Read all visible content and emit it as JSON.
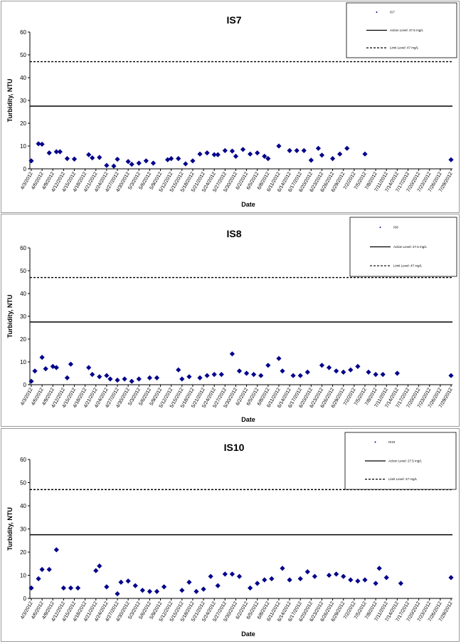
{
  "chart_data": [
    {
      "type": "scatter",
      "title": "IS7",
      "xlabel": "Date",
      "ylabel": "Turbidity, NTU",
      "ylim": [
        0,
        60
      ],
      "yticks": [
        0,
        10,
        20,
        30,
        40,
        50,
        60
      ],
      "xticklabels": [
        "4/3/2012",
        "4/6/2012",
        "4/9/2012",
        "4/12/2012",
        "4/15/2012",
        "4/18/2012",
        "4/21/2012",
        "4/24/2012",
        "4/27/2012",
        "4/30/2012",
        "5/3/2012",
        "5/6/2012",
        "5/9/2012",
        "5/12/2012",
        "5/15/2012",
        "5/18/2012",
        "5/21/2012",
        "5/24/2012",
        "5/27/2012",
        "5/30/2012",
        "6/2/2012",
        "6/5/2012",
        "6/8/2012",
        "6/11/2012",
        "6/14/2012",
        "6/17/2012",
        "6/20/2012",
        "6/23/2012",
        "6/26/2012",
        "6/29/2012",
        "7/2/2012",
        "7/5/2012",
        "7/8/2012",
        "7/11/2012",
        "7/14/2012",
        "7/17/2012",
        "7/20/2012",
        "7/23/2012",
        "7/26/2012",
        "7/29/2012"
      ],
      "series": [
        {
          "name": "IS7",
          "points": [
            {
              "x": "4/3/2012",
              "y": 3.5
            },
            {
              "x": "4/5/2012",
              "y": 11
            },
            {
              "x": "4/6/2012",
              "y": 10.8
            },
            {
              "x": "4/8/2012",
              "y": 7
            },
            {
              "x": "4/10/2012",
              "y": 7.5
            },
            {
              "x": "4/11/2012",
              "y": 7.5
            },
            {
              "x": "4/13/2012",
              "y": 4.5
            },
            {
              "x": "4/15/2012",
              "y": 4.3
            },
            {
              "x": "4/19/2012",
              "y": 6.2
            },
            {
              "x": "4/20/2012",
              "y": 4.8
            },
            {
              "x": "4/22/2012",
              "y": 5
            },
            {
              "x": "4/24/2012",
              "y": 1.5
            },
            {
              "x": "4/26/2012",
              "y": 1.2
            },
            {
              "x": "4/27/2012",
              "y": 4.2
            },
            {
              "x": "4/30/2012",
              "y": 3.2
            },
            {
              "x": "5/1/2012",
              "y": 2
            },
            {
              "x": "5/3/2012",
              "y": 2.5
            },
            {
              "x": "5/5/2012",
              "y": 3.5
            },
            {
              "x": "5/7/2012",
              "y": 2.5
            },
            {
              "x": "5/11/2012",
              "y": 4
            },
            {
              "x": "5/12/2012",
              "y": 4.5
            },
            {
              "x": "5/14/2012",
              "y": 4.5
            },
            {
              "x": "5/16/2012",
              "y": 2.2
            },
            {
              "x": "5/18/2012",
              "y": 3.5
            },
            {
              "x": "5/20/2012",
              "y": 6.5
            },
            {
              "x": "5/22/2012",
              "y": 7
            },
            {
              "x": "5/24/2012",
              "y": 6.2
            },
            {
              "x": "5/25/2012",
              "y": 6.2
            },
            {
              "x": "5/27/2012",
              "y": 8
            },
            {
              "x": "5/29/2012",
              "y": 7.8
            },
            {
              "x": "5/30/2012",
              "y": 5.5
            },
            {
              "x": "6/1/2012",
              "y": 8.5
            },
            {
              "x": "6/3/2012",
              "y": 6.5
            },
            {
              "x": "6/5/2012",
              "y": 7
            },
            {
              "x": "6/7/2012",
              "y": 5.5
            },
            {
              "x": "6/8/2012",
              "y": 4.5
            },
            {
              "x": "6/11/2012",
              "y": 10
            },
            {
              "x": "6/14/2012",
              "y": 8
            },
            {
              "x": "6/16/2012",
              "y": 8
            },
            {
              "x": "6/18/2012",
              "y": 8
            },
            {
              "x": "6/20/2012",
              "y": 3.8
            },
            {
              "x": "6/22/2012",
              "y": 9
            },
            {
              "x": "6/23/2012",
              "y": 6
            },
            {
              "x": "6/26/2012",
              "y": 4.5
            },
            {
              "x": "6/28/2012",
              "y": 6.5
            },
            {
              "x": "6/30/2012",
              "y": 9
            },
            {
              "x": "7/5/2012",
              "y": 6.5
            },
            {
              "x": "7/29/2012",
              "y": 4
            }
          ]
        },
        {
          "name": "Action Level: 27.5 mg/L",
          "value": 27.5,
          "style": "solid"
        },
        {
          "name": "Limit Level: 47 mg/L",
          "value": 47,
          "style": "dashed"
        }
      ],
      "legend": [
        "IS7",
        "Action Level: 27.5 mg/L",
        "Limit Level: 47 mg/L"
      ],
      "legend_position": "top-right",
      "grid": false,
      "colors": {
        "marker": "#00008b"
      }
    },
    {
      "type": "scatter",
      "title": "IS8",
      "xlabel": "Date",
      "ylabel": "Turbidity, NTU",
      "ylim": [
        0,
        60
      ],
      "yticks": [
        0,
        10,
        20,
        30,
        40,
        50,
        60
      ],
      "xticklabels": [
        "4/3/2012",
        "4/6/2012",
        "4/9/2012",
        "4/12/2012",
        "4/15/2012",
        "4/18/2012",
        "4/21/2012",
        "4/24/2012",
        "4/27/2012",
        "4/30/2012",
        "5/3/2012",
        "5/6/2012",
        "5/9/2012",
        "5/12/2012",
        "5/15/2012",
        "5/18/2012",
        "5/21/2012",
        "5/24/2012",
        "5/27/2012",
        "5/30/2012",
        "6/2/2012",
        "6/5/2012",
        "6/8/2012",
        "6/11/2012",
        "6/14/2012",
        "6/17/2012",
        "6/20/2012",
        "6/23/2012",
        "6/26/2012",
        "6/29/2012",
        "7/2/2012",
        "7/5/2012",
        "7/8/2012",
        "7/11/2012",
        "7/14/2012",
        "7/17/2012",
        "7/20/2012",
        "7/23/2012",
        "7/26/2012",
        "7/29/2012"
      ],
      "series": [
        {
          "name": "IS8",
          "points": [
            {
              "x": "4/3/2012",
              "y": 1.5
            },
            {
              "x": "4/4/2012",
              "y": 6
            },
            {
              "x": "4/6/2012",
              "y": 12
            },
            {
              "x": "4/7/2012",
              "y": 7
            },
            {
              "x": "4/9/2012",
              "y": 8
            },
            {
              "x": "4/10/2012",
              "y": 7.5
            },
            {
              "x": "4/13/2012",
              "y": 3
            },
            {
              "x": "4/14/2012",
              "y": 9
            },
            {
              "x": "4/19/2012",
              "y": 7.5
            },
            {
              "x": "4/20/2012",
              "y": 4.5
            },
            {
              "x": "4/22/2012",
              "y": 3.5
            },
            {
              "x": "4/24/2012",
              "y": 4
            },
            {
              "x": "4/25/2012",
              "y": 2.5
            },
            {
              "x": "4/27/2012",
              "y": 2
            },
            {
              "x": "4/29/2012",
              "y": 2.5
            },
            {
              "x": "5/1/2012",
              "y": 1.5
            },
            {
              "x": "5/3/2012",
              "y": 2.5
            },
            {
              "x": "5/6/2012",
              "y": 3
            },
            {
              "x": "5/8/2012",
              "y": 3
            },
            {
              "x": "5/14/2012",
              "y": 6.5
            },
            {
              "x": "5/15/2012",
              "y": 2.5
            },
            {
              "x": "5/17/2012",
              "y": 3.5
            },
            {
              "x": "5/20/2012",
              "y": 3
            },
            {
              "x": "5/22/2012",
              "y": 4
            },
            {
              "x": "5/24/2012",
              "y": 4.5
            },
            {
              "x": "5/26/2012",
              "y": 4.5
            },
            {
              "x": "5/29/2012",
              "y": 13.5
            },
            {
              "x": "5/31/2012",
              "y": 6
            },
            {
              "x": "6/2/2012",
              "y": 5
            },
            {
              "x": "6/4/2012",
              "y": 4.5
            },
            {
              "x": "6/6/2012",
              "y": 4
            },
            {
              "x": "6/8/2012",
              "y": 8.5
            },
            {
              "x": "6/11/2012",
              "y": 11.5
            },
            {
              "x": "6/12/2012",
              "y": 6
            },
            {
              "x": "6/15/2012",
              "y": 4
            },
            {
              "x": "6/17/2012",
              "y": 4
            },
            {
              "x": "6/19/2012",
              "y": 5.5
            },
            {
              "x": "6/23/2012",
              "y": 8.5
            },
            {
              "x": "6/25/2012",
              "y": 7.5
            },
            {
              "x": "6/27/2012",
              "y": 6
            },
            {
              "x": "6/29/2012",
              "y": 5.5
            },
            {
              "x": "7/1/2012",
              "y": 6.5
            },
            {
              "x": "7/3/2012",
              "y": 8
            },
            {
              "x": "7/6/2012",
              "y": 5.5
            },
            {
              "x": "7/8/2012",
              "y": 4.5
            },
            {
              "x": "7/10/2012",
              "y": 4.5
            },
            {
              "x": "7/14/2012",
              "y": 5
            },
            {
              "x": "7/29/2012",
              "y": 4
            }
          ]
        },
        {
          "name": "Action Level: 27.5 mg/L",
          "value": 27.5,
          "style": "solid"
        },
        {
          "name": "Limit Level: 47 mg/L",
          "value": 47,
          "style": "dashed"
        }
      ],
      "legend": [
        "IS8",
        "Action Level: 27.5 mg/L",
        "Limit Level: 47 mg/L"
      ],
      "legend_position": "top-right",
      "grid": false,
      "colors": {
        "marker": "#00008b"
      }
    },
    {
      "type": "scatter",
      "title": "IS10",
      "xlabel": "Date",
      "ylabel": "Turbidity, NTU",
      "ylim": [
        0,
        60
      ],
      "yticks": [
        0,
        10,
        20,
        30,
        40,
        50,
        60
      ],
      "xticklabels": [
        "4/3/2012",
        "4/6/2012",
        "4/9/2012",
        "4/12/2012",
        "4/15/2012",
        "4/18/2012",
        "4/21/2012",
        "4/24/2012",
        "4/27/2012",
        "4/30/2012",
        "5/3/2012",
        "5/6/2012",
        "5/9/2012",
        "5/12/2012",
        "5/15/2012",
        "5/18/2012",
        "5/21/2012",
        "5/24/2012",
        "5/27/2012",
        "5/30/2012",
        "6/2/2012",
        "6/5/2012",
        "6/8/2012",
        "6/11/2012",
        "6/14/2012",
        "6/17/2012",
        "6/20/2012",
        "6/23/2012",
        "6/26/2012",
        "6/29/2012",
        "7/2/2012",
        "7/5/2012",
        "7/8/2012",
        "7/11/2012",
        "7/14/2012",
        "7/17/2012",
        "7/20/2012",
        "7/23/2012",
        "7/26/2012",
        "7/29/2012"
      ],
      "series": [
        {
          "name": "IS10",
          "points": [
            {
              "x": "4/3/2012",
              "y": 4.5
            },
            {
              "x": "4/5/2012",
              "y": 8.5
            },
            {
              "x": "4/6/2012",
              "y": 12.5
            },
            {
              "x": "4/8/2012",
              "y": 12.5
            },
            {
              "x": "4/10/2012",
              "y": 21
            },
            {
              "x": "4/12/2012",
              "y": 4.5
            },
            {
              "x": "4/14/2012",
              "y": 4.5
            },
            {
              "x": "4/16/2012",
              "y": 4.5
            },
            {
              "x": "4/21/2012",
              "y": 12
            },
            {
              "x": "4/22/2012",
              "y": 14
            },
            {
              "x": "4/24/2012",
              "y": 5
            },
            {
              "x": "4/27/2012",
              "y": 2
            },
            {
              "x": "4/28/2012",
              "y": 7
            },
            {
              "x": "4/30/2012",
              "y": 7.5
            },
            {
              "x": "5/2/2012",
              "y": 5.5
            },
            {
              "x": "5/4/2012",
              "y": 3.5
            },
            {
              "x": "5/6/2012",
              "y": 3
            },
            {
              "x": "5/8/2012",
              "y": 3
            },
            {
              "x": "5/10/2012",
              "y": 5
            },
            {
              "x": "5/15/2012",
              "y": 3.5
            },
            {
              "x": "5/17/2012",
              "y": 7
            },
            {
              "x": "5/19/2012",
              "y": 3
            },
            {
              "x": "5/21/2012",
              "y": 4
            },
            {
              "x": "5/23/2012",
              "y": 9.5
            },
            {
              "x": "5/25/2012",
              "y": 5.5
            },
            {
              "x": "5/27/2012",
              "y": 10.5
            },
            {
              "x": "5/29/2012",
              "y": 10.5
            },
            {
              "x": "5/31/2012",
              "y": 9.5
            },
            {
              "x": "6/3/2012",
              "y": 4.5
            },
            {
              "x": "6/5/2012",
              "y": 6.5
            },
            {
              "x": "6/7/2012",
              "y": 8
            },
            {
              "x": "6/9/2012",
              "y": 8.5
            },
            {
              "x": "6/12/2012",
              "y": 13
            },
            {
              "x": "6/14/2012",
              "y": 8
            },
            {
              "x": "6/17/2012",
              "y": 8.5
            },
            {
              "x": "6/19/2012",
              "y": 11.5
            },
            {
              "x": "6/21/2012",
              "y": 9.5
            },
            {
              "x": "6/25/2012",
              "y": 10
            },
            {
              "x": "6/27/2012",
              "y": 10.5
            },
            {
              "x": "6/29/2012",
              "y": 9.5
            },
            {
              "x": "7/1/2012",
              "y": 8
            },
            {
              "x": "7/3/2012",
              "y": 7.5
            },
            {
              "x": "7/5/2012",
              "y": 8
            },
            {
              "x": "7/8/2012",
              "y": 6.5
            },
            {
              "x": "7/9/2012",
              "y": 13
            },
            {
              "x": "7/11/2012",
              "y": 9
            },
            {
              "x": "7/15/2012",
              "y": 6.5
            },
            {
              "x": "7/29/2012",
              "y": 9
            }
          ]
        },
        {
          "name": "Action Level: 27.5 mg/L",
          "value": 27.5,
          "style": "solid"
        },
        {
          "name": "Limit Level: 47 mg/L",
          "value": 47,
          "style": "dashed"
        }
      ],
      "legend": [
        "IS10",
        "Action Level: 27.5 mg/L",
        "Limit Level: 47 mg/L"
      ],
      "legend_position": "top-right",
      "grid": false,
      "colors": {
        "marker": "#00008b"
      }
    }
  ]
}
